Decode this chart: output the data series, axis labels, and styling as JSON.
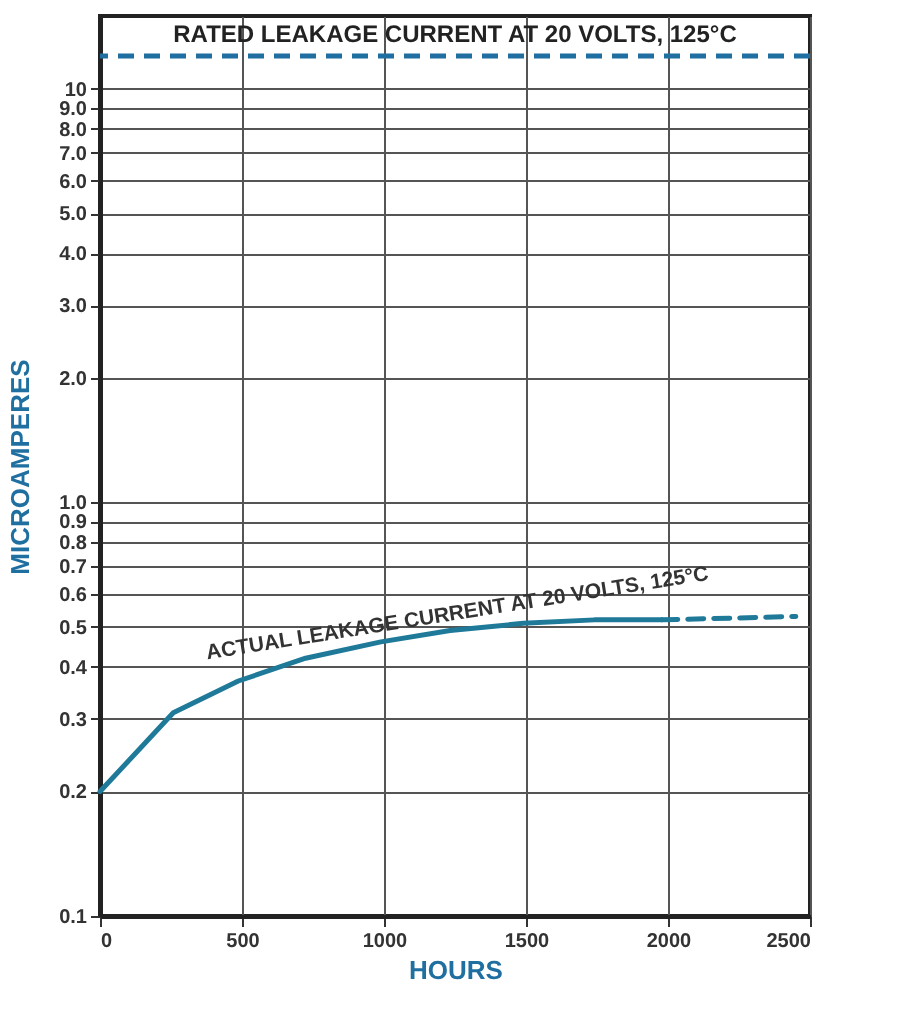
{
  "chart_data": {
    "type": "line",
    "xlabel": "HOURS",
    "ylabel": "MICROAMPERES",
    "log": "y",
    "grid": true,
    "marker": "none",
    "xlim": [
      0,
      2500
    ],
    "xticks": [
      0,
      500,
      1000,
      1500,
      2000,
      2500
    ],
    "ylim": [
      0.1,
      15
    ],
    "yticks": [
      0.1,
      0.2,
      0.3,
      0.4,
      0.5,
      0.6,
      0.7,
      0.8,
      0.9,
      {
        "value": 1,
        "label": "1.0"
      },
      {
        "value": 2,
        "label": "2.0"
      },
      {
        "value": 3,
        "label": "3.0"
      },
      {
        "value": 4,
        "label": "4.0"
      },
      {
        "value": 5,
        "label": "5.0"
      },
      {
        "value": 6,
        "label": "6.0"
      },
      {
        "value": 7,
        "label": "7.0"
      },
      {
        "value": 8,
        "label": "8.0"
      },
      {
        "value": 9,
        "label": "9.0"
      },
      10
    ],
    "series": [
      {
        "name": "ACTUAL LEAKAGE CURRENT AT 20 VOLTS, 125°C",
        "color": "#1f7a99",
        "line_style": "solid",
        "x": [
          0,
          258,
          487,
          724,
          989,
          1233,
          1490,
          1741,
          1978
        ],
        "values": [
          0.2,
          0.31,
          0.37,
          0.42,
          0.46,
          0.49,
          0.51,
          0.52,
          0.52
        ]
      },
      {
        "color": "#1f7a99",
        "line_style": "dashed",
        "x": [
          1978,
          2450
        ],
        "values": [
          0.52,
          0.53
        ]
      }
    ],
    "ref_lines": [
      {
        "axis": "y",
        "value": 12,
        "label": "RATED LEAKAGE CURRENT AT 20 VOLTS, 125°C",
        "color": "#1f6fa0",
        "line_style": "dashed"
      }
    ]
  }
}
